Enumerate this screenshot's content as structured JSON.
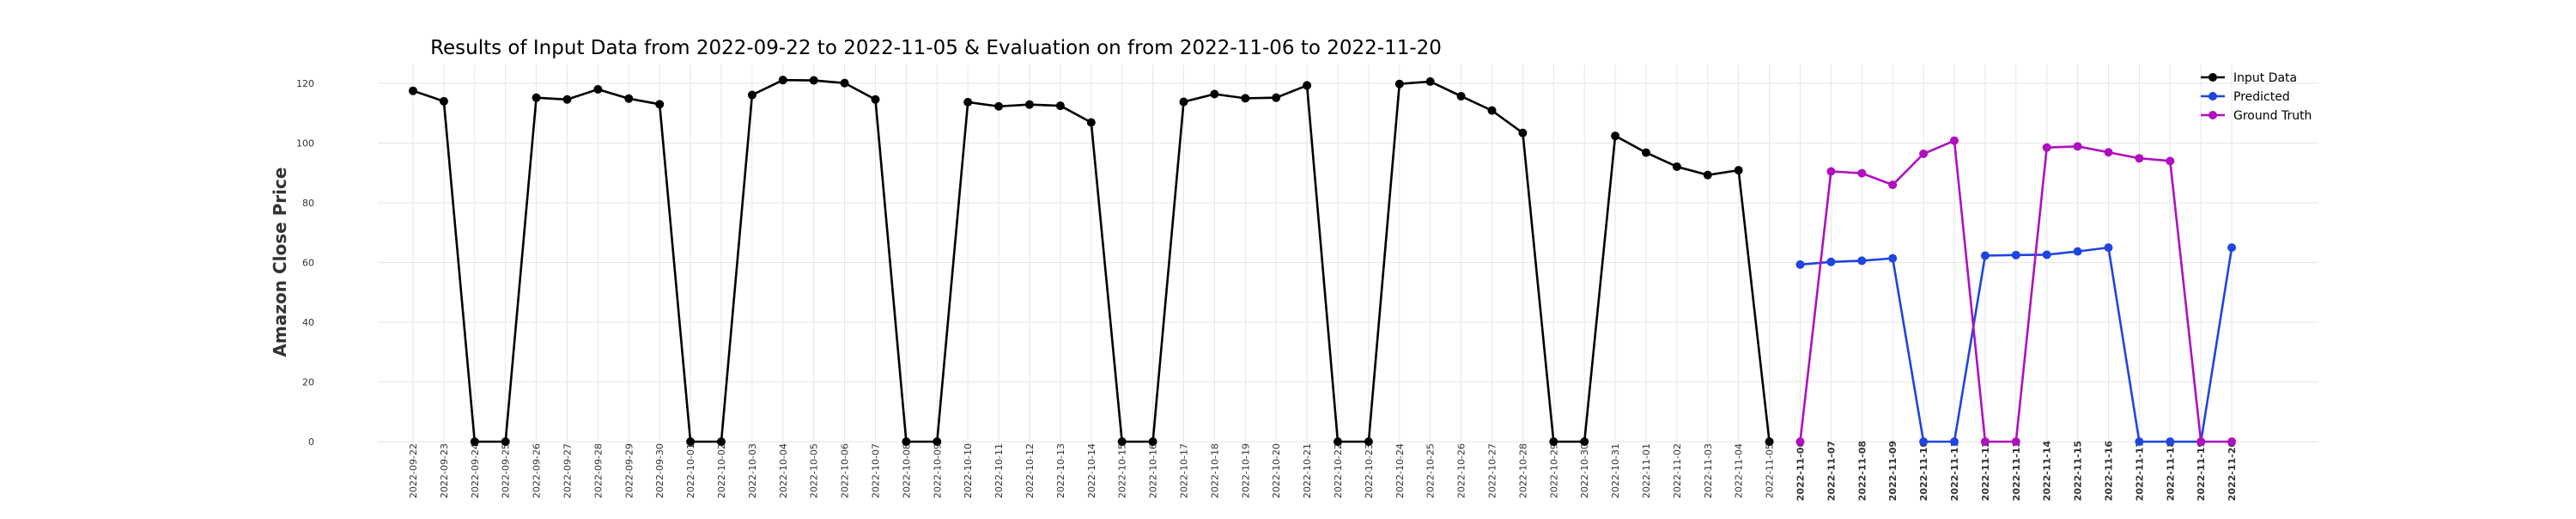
{
  "chart_data": {
    "type": "line",
    "title": "Results of Input Data from 2022-09-22 to 2022-11-05 & Evaluation on from 2022-11-06 to 2022-11-20",
    "xlabel": "",
    "ylabel": "Amazon Close Price",
    "ylim": [
      -5,
      128
    ],
    "yticks": [
      0,
      20,
      40,
      60,
      80,
      100,
      120
    ],
    "grid": true,
    "legend_position": "top-right",
    "x": [
      "2022-09-22",
      "2022-09-23",
      "2022-09-24",
      "2022-09-25",
      "2022-09-26",
      "2022-09-27",
      "2022-09-28",
      "2022-09-29",
      "2022-09-30",
      "2022-10-01",
      "2022-10-02",
      "2022-10-03",
      "2022-10-04",
      "2022-10-05",
      "2022-10-06",
      "2022-10-07",
      "2022-10-08",
      "2022-10-09",
      "2022-10-10",
      "2022-10-11",
      "2022-10-12",
      "2022-10-13",
      "2022-10-14",
      "2022-10-15",
      "2022-10-16",
      "2022-10-17",
      "2022-10-18",
      "2022-10-19",
      "2022-10-20",
      "2022-10-21",
      "2022-10-22",
      "2022-10-23",
      "2022-10-24",
      "2022-10-25",
      "2022-10-26",
      "2022-10-27",
      "2022-10-28",
      "2022-10-29",
      "2022-10-30",
      "2022-10-31",
      "2022-11-01",
      "2022-11-02",
      "2022-11-03",
      "2022-11-04",
      "2022-11-05",
      "2022-11-06",
      "2022-11-07",
      "2022-11-08",
      "2022-11-09",
      "2022-11-10",
      "2022-11-11",
      "2022-11-12",
      "2022-11-13",
      "2022-11-14",
      "2022-11-15",
      "2022-11-16",
      "2022-11-17",
      "2022-11-18",
      "2022-11-19",
      "2022-11-20"
    ],
    "x_tick_labels": [
      "2022-09-22",
      "2022-09-23",
      "2022-09-24",
      "2022-09-25",
      "2022-09-26",
      "2022-09-27",
      "2022-09-28",
      "2022-09-29",
      "2022-09-30",
      "2022-10-01",
      "2022-10-02",
      "2022-10-03",
      "2022-10-04",
      "2022-10-05",
      "2022-10-06",
      "2022-10-07",
      "2022-10-08",
      "2022-10-09",
      "2022-10-10",
      "2022-10-11",
      "2022-10-12",
      "2022-10-13",
      "2022-10-14",
      "2022-10-15",
      "2022-10-16",
      "2022-10-17",
      "2022-10-18",
      "2022-10-19",
      "2022-10-20",
      "2022-10-21",
      "2022-10-22",
      "2022-10-23",
      "2022-10-24",
      "2022-10-25",
      "2022-10-26",
      "2022-10-27",
      "2022-10-28",
      "2022-10-29",
      "2022-10-30",
      "2022-10-31",
      "2022-11-01",
      "2022-11-02",
      "2022-11-03",
      "2022-11-04",
      "2022-11-05",
      "2022-11-06",
      "2022-11-07",
      "2022-11-08",
      "2022-11-09",
      "2022-11-10",
      "2022-11-11",
      "2022-11-12",
      "2022-11-13",
      "2022-11-14",
      "2022-11-15",
      "2022-11-16",
      "2022-11-17",
      "2022-11-18",
      "2022-11-19",
      "2022-11-20"
    ],
    "series": [
      {
        "name": "Input Data",
        "color": "#000000",
        "x": [
          "2022-09-22",
          "2022-09-23",
          "2022-09-24",
          "2022-09-25",
          "2022-09-26",
          "2022-09-27",
          "2022-09-28",
          "2022-09-29",
          "2022-09-30",
          "2022-10-01",
          "2022-10-02",
          "2022-10-03",
          "2022-10-04",
          "2022-10-05",
          "2022-10-06",
          "2022-10-07",
          "2022-10-08",
          "2022-10-09",
          "2022-10-10",
          "2022-10-11",
          "2022-10-12",
          "2022-10-13",
          "2022-10-14",
          "2022-10-15",
          "2022-10-16",
          "2022-10-17",
          "2022-10-18",
          "2022-10-19",
          "2022-10-20",
          "2022-10-21",
          "2022-10-22",
          "2022-10-23",
          "2022-10-24",
          "2022-10-25",
          "2022-10-26",
          "2022-10-27",
          "2022-10-28",
          "2022-10-29",
          "2022-10-30",
          "2022-10-31",
          "2022-11-01",
          "2022-11-02",
          "2022-11-03",
          "2022-11-04",
          "2022-11-05"
        ],
        "values": [
          117.5,
          114.0,
          0,
          0,
          115.2,
          114.6,
          118.0,
          114.9,
          113.0,
          0,
          0,
          116.1,
          121.1,
          121.0,
          120.1,
          114.6,
          0,
          0,
          113.7,
          112.3,
          112.9,
          112.5,
          106.9,
          0,
          0,
          113.8,
          116.4,
          115.0,
          115.2,
          119.3,
          0,
          0,
          119.8,
          120.6,
          115.7,
          110.9,
          103.4,
          0,
          0,
          102.4,
          96.8,
          92.1,
          89.3,
          90.9,
          0
        ]
      },
      {
        "name": "Predicted",
        "color": "#1f44e0",
        "x": [
          "2022-11-06",
          "2022-11-07",
          "2022-11-08",
          "2022-11-09",
          "2022-11-10",
          "2022-11-11",
          "2022-11-12",
          "2022-11-13",
          "2022-11-14",
          "2022-11-15",
          "2022-11-16",
          "2022-11-17",
          "2022-11-18",
          "2022-11-19",
          "2022-11-20"
        ],
        "values": [
          59.3,
          60.2,
          60.6,
          61.4,
          0,
          0,
          62.3,
          62.5,
          62.6,
          63.7,
          65.0,
          0,
          0,
          0,
          65.0
        ]
      },
      {
        "name": "Ground Truth",
        "color": "#b00fbf",
        "x": [
          "2022-11-06",
          "2022-11-07",
          "2022-11-08",
          "2022-11-09",
          "2022-11-10",
          "2022-11-11",
          "2022-11-12",
          "2022-11-13",
          "2022-11-14",
          "2022-11-15",
          "2022-11-16",
          "2022-11-17",
          "2022-11-18",
          "2022-11-19",
          "2022-11-20"
        ],
        "values": [
          0,
          90.5,
          89.9,
          86.0,
          96.4,
          100.8,
          0,
          0,
          98.5,
          98.9,
          96.9,
          94.9,
          94.0,
          0,
          0
        ]
      }
    ]
  }
}
